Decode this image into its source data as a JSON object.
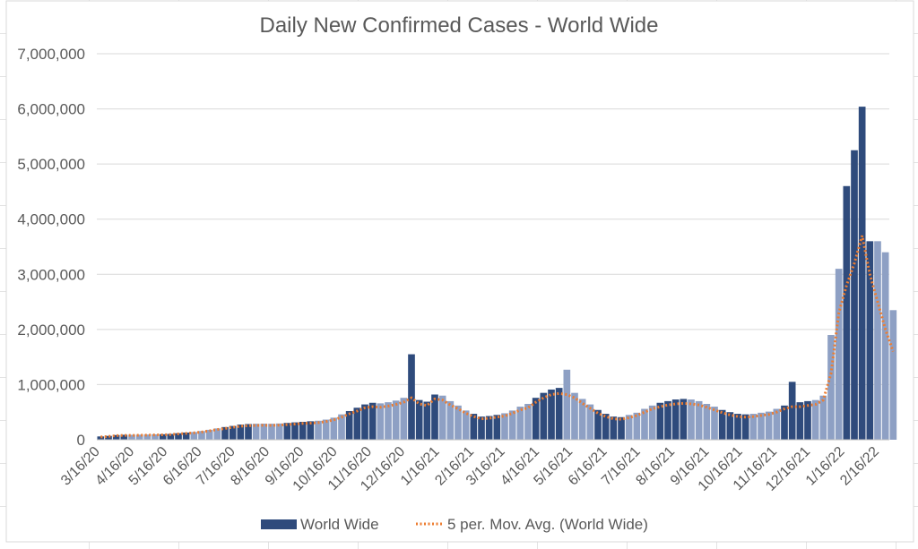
{
  "chart_data": {
    "type": "bar",
    "title": "Daily New Confirmed Cases - World Wide",
    "xlabel": "",
    "ylabel": "",
    "ylim": [
      0,
      7000000
    ],
    "y_ticks": [
      "0",
      "1,000,000",
      "2,000,000",
      "3,000,000",
      "4,000,000",
      "5,000,000",
      "6,000,000",
      "7,000,000"
    ],
    "x_ticks": [
      "3/16/20",
      "4/16/20",
      "5/16/20",
      "6/16/20",
      "7/16/20",
      "8/16/20",
      "9/16/20",
      "10/16/20",
      "11/16/20",
      "12/16/20",
      "1/16/21",
      "2/16/21",
      "3/16/21",
      "4/16/21",
      "5/16/21",
      "6/16/21",
      "7/16/21",
      "8/16/21",
      "9/16/21",
      "10/16/21",
      "11/16/21",
      "12/16/21",
      "1/16/22",
      "2/16/22"
    ],
    "x_tick_day_offsets": [
      0,
      31,
      61,
      92,
      122,
      153,
      184,
      214,
      245,
      275,
      306,
      337,
      365,
      396,
      426,
      457,
      487,
      518,
      549,
      579,
      610,
      640,
      671,
      702
    ],
    "x_start": "3/16/20",
    "interval_days": 7,
    "grid": true,
    "legend_position": "bottom",
    "series": [
      {
        "name": "World Wide",
        "type": "bar",
        "color": "#2f4b7c",
        "values": [
          60000,
          70000,
          85000,
          90000,
          90000,
          92000,
          95000,
          98000,
          100000,
          105000,
          118000,
          130000,
          140000,
          158000,
          180000,
          205000,
          230000,
          250000,
          275000,
          285000,
          290000,
          292000,
          290000,
          295000,
          305000,
          315000,
          325000,
          335000,
          345000,
          365000,
          400000,
          460000,
          520000,
          580000,
          640000,
          670000,
          660000,
          680000,
          710000,
          760000,
          1550000,
          720000,
          690000,
          820000,
          800000,
          700000,
          620000,
          530000,
          470000,
          420000,
          430000,
          450000,
          480000,
          530000,
          600000,
          650000,
          760000,
          850000,
          910000,
          940000,
          1270000,
          850000,
          740000,
          640000,
          540000,
          470000,
          420000,
          410000,
          450000,
          490000,
          560000,
          620000,
          670000,
          700000,
          730000,
          740000,
          730000,
          700000,
          650000,
          600000,
          540000,
          500000,
          470000,
          460000,
          470000,
          490000,
          510000,
          560000,
          620000,
          1050000,
          680000,
          700000,
          720000,
          800000,
          1900000,
          3100000,
          4600000,
          5250000,
          6040000,
          3600000,
          3600000,
          3400000,
          2350000
        ]
      },
      {
        "name": "5 per. Mov. Avg. (World Wide)",
        "type": "line",
        "color": "#ed7d31",
        "values": [
          50000,
          60000,
          75000,
          80000,
          80000,
          82000,
          85000,
          88000,
          90000,
          95000,
          105000,
          115000,
          125000,
          140000,
          160000,
          185000,
          205000,
          225000,
          245000,
          255000,
          260000,
          262000,
          260000,
          265000,
          275000,
          285000,
          295000,
          300000,
          310000,
          330000,
          360000,
          410000,
          470000,
          520000,
          580000,
          600000,
          590000,
          610000,
          640000,
          680000,
          760000,
          650000,
          620000,
          740000,
          720000,
          630000,
          560000,
          480000,
          420000,
          380000,
          390000,
          410000,
          430000,
          480000,
          540000,
          580000,
          680000,
          760000,
          820000,
          840000,
          820000,
          760000,
          660000,
          570000,
          480000,
          420000,
          380000,
          370000,
          400000,
          440000,
          500000,
          560000,
          600000,
          630000,
          650000,
          660000,
          650000,
          630000,
          590000,
          540000,
          490000,
          450000,
          420000,
          410000,
          420000,
          440000,
          460000,
          500000,
          560000,
          600000,
          600000,
          620000,
          640000,
          720000,
          1200000,
          2300000,
          2800000,
          3200000,
          3700000,
          3000000,
          2500000,
          2000000,
          1600000
        ]
      }
    ]
  }
}
